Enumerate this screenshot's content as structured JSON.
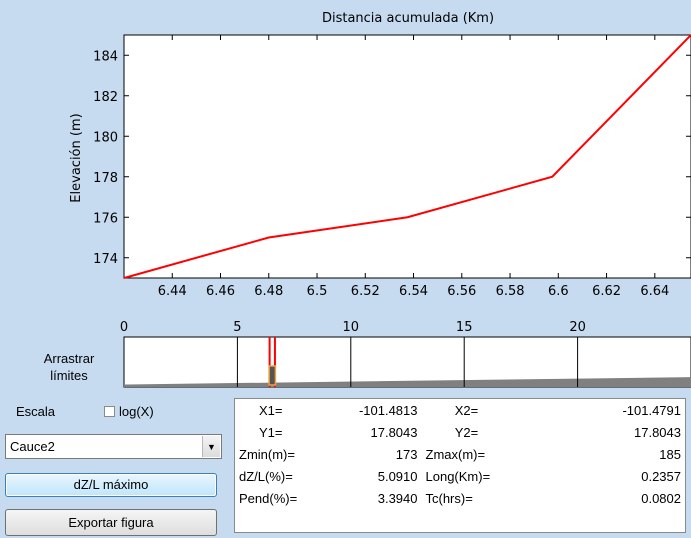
{
  "main_plot": {
    "top_axis_label": "Distancia acumulada (Km)",
    "ylabel": "Elevación (m)"
  },
  "chart_data": [
    {
      "type": "line",
      "xlabel": "Distancia acumulada (Km)",
      "ylabel": "Elevación (m)",
      "xlim": [
        6.42,
        6.655
      ],
      "ylim": [
        173,
        185
      ],
      "x_ticks": [
        "6.44",
        "6.46",
        "6.48",
        "6.5",
        "6.52",
        "6.54",
        "6.56",
        "6.58",
        "6.6",
        "6.62",
        "6.64"
      ],
      "y_ticks": [
        "174",
        "176",
        "178",
        "180",
        "182",
        "184"
      ],
      "x": [
        6.42,
        6.48,
        6.5375,
        6.5975,
        6.655
      ],
      "y": [
        173,
        175,
        176,
        178,
        185
      ],
      "line_color": "#ff0000",
      "grid": false
    },
    {
      "type": "area",
      "x_ticks": [
        "0",
        "5",
        "10",
        "15",
        "20"
      ],
      "xlim": [
        0,
        25
      ],
      "x": [
        0,
        25
      ],
      "y": [
        0.2,
        0.8
      ],
      "fill_color": "#808080",
      "selection_range": [
        6.42,
        6.655
      ]
    }
  ],
  "slider": {
    "label_line1": "Arrastrar",
    "label_line2": "límites"
  },
  "controls": {
    "escala_label": "Escala",
    "log_label": "log(X)",
    "log_checked": false,
    "cauce_selected": "Cauce2",
    "dz_button": "dZ/L máximo",
    "export_button": "Exportar figura"
  },
  "stats": {
    "x1_label": "X1=",
    "x1_value": "-101.4813",
    "x2_label": "X2=",
    "x2_value": "-101.4791",
    "y1_label": "Y1=",
    "y1_value": "17.8043",
    "y2_label": "Y2=",
    "y2_value": "17.8043",
    "zmin_label": "Zmin(m)=",
    "zmin_value": "173",
    "zmax_label": "Zmax(m)=",
    "zmax_value": "185",
    "dzl_label": "dZ/L(%)=",
    "dzl_value": "5.0910",
    "long_label": "Long(Km)=",
    "long_value": "0.2357",
    "pend_label": "Pend(%)=",
    "pend_value": "3.3940",
    "tc_label": "Tc(hrs)=",
    "tc_value": "0.0802"
  }
}
